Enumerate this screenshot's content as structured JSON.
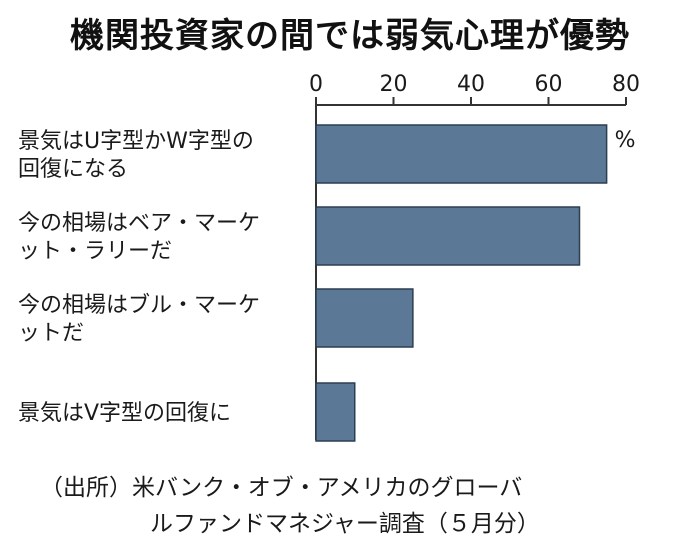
{
  "title": "機関投資家の間では弱気心理が優勢",
  "chart_data": {
    "type": "bar",
    "orientation": "horizontal",
    "title": "機関投資家の間では弱気心理が優勢",
    "categories": [
      [
        "景気はU字型かW字型の",
        "回復になる"
      ],
      [
        "今の相場はベア・マーケ",
        "ット・ラリーだ"
      ],
      [
        "今の相場はブル・マーケ",
        "ットだ"
      ],
      [
        "景気はV字型の回復に"
      ]
    ],
    "values": [
      75,
      68,
      25,
      10
    ],
    "unit_label": "%",
    "xlim": [
      0,
      80
    ],
    "ticks": [
      0,
      20,
      40,
      60,
      80
    ],
    "tick_labels": [
      "0",
      "20",
      "40",
      "60",
      "80"
    ],
    "axis_position": "top",
    "grid": false,
    "bar_color": "#5b7896"
  },
  "source": {
    "line1": "（出所）米バンク・オブ・アメリカのグローバ",
    "line2": "ルファンドマネジャー調査（５月分）"
  }
}
